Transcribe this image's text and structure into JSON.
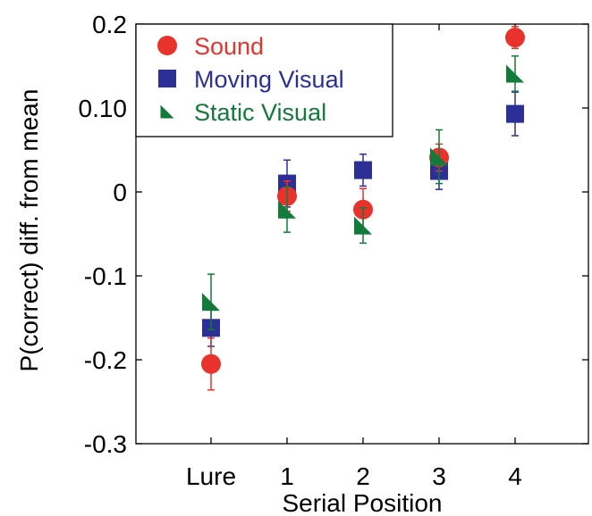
{
  "chart_data": {
    "type": "scatter",
    "title": "",
    "xlabel": "Serial Position",
    "ylabel": "P(correct) diff. from mean",
    "categories": [
      "Lure",
      "1",
      "2",
      "3",
      "4"
    ],
    "ylim": [
      -0.3,
      0.2
    ],
    "yticks": [
      {
        "value": 0.2,
        "label": "0.2"
      },
      {
        "value": 0.1,
        "label": "0.10"
      },
      {
        "value": 0,
        "label": "0"
      },
      {
        "value": -0.1,
        "label": "-0.1"
      },
      {
        "value": -0.2,
        "label": "-0.2"
      },
      {
        "value": -0.3,
        "label": "-0.3"
      }
    ],
    "grid": false,
    "legend_position": "top-left",
    "series": [
      {
        "name": "Sound",
        "marker": "circle",
        "color": "#e8322b",
        "values": [
          -0.205,
          -0.005,
          -0.021,
          0.041,
          0.184
        ],
        "errors": [
          0.031,
          0.018,
          0.025,
          0.016,
          0.013
        ]
      },
      {
        "name": "Moving Visual",
        "marker": "square",
        "color": "#2b2f96",
        "values": [
          -0.162,
          0.01,
          0.026,
          0.025,
          0.093
        ],
        "errors": [
          0.022,
          0.028,
          0.019,
          0.022,
          0.026
        ]
      },
      {
        "name": "Static Visual",
        "marker": "triangle",
        "color": "#127a3a",
        "values": [
          -0.131,
          -0.021,
          -0.04,
          0.042,
          0.141
        ],
        "errors": [
          0.033,
          0.027,
          0.021,
          0.032,
          0.021
        ]
      }
    ]
  }
}
